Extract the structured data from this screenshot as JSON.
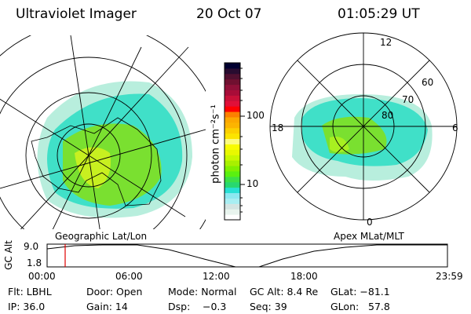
{
  "header": {
    "instrument": "Ultraviolet Imager",
    "date": "20 Oct 07",
    "time": "01:05:29 UT"
  },
  "left_map": {
    "label": "Geographic Lat/Lon"
  },
  "right_map": {
    "label": "Apex MLat/MLT",
    "mlt_labels": [
      "12",
      "18",
      "6",
      "0"
    ],
    "lat_labels": [
      "60",
      "70",
      "80"
    ]
  },
  "colorbar": {
    "unit_label": "photon cm⁻²s⁻¹",
    "ticks": [
      "100",
      "10"
    ],
    "colors": [
      "#ffffff",
      "#e8f4ee",
      "#d4e4e2",
      "#a8eef2",
      "#8ce8f0",
      "#28e0d4",
      "#28d870",
      "#3ce048",
      "#5af010",
      "#80f000",
      "#a8f000",
      "#c8f800",
      "#e8f800",
      "#f8fc00",
      "#fcfc80",
      "#fce400",
      "#fcd000",
      "#fcb400",
      "#fca800",
      "#fc8000",
      "#ff0000",
      "#e01038",
      "#c81038",
      "#a80c38",
      "#901038",
      "#701030",
      "#501030",
      "#280c30",
      "#000030"
    ]
  },
  "altitude_plot": {
    "ylabel": "GC Alt",
    "yticks": [
      "9.0",
      "1.8"
    ],
    "xticks": [
      "00:00",
      "06:00",
      "12:00",
      "18:00",
      "23:59"
    ],
    "current_time_marker": "01:05"
  },
  "info": {
    "flt": "Flt: LBHL",
    "ip": "IP: 36.0",
    "door": "Door: Open",
    "gain": "Gain: 14",
    "mode": "Mode: Normal",
    "dsp_label": "Dsp:",
    "dsp_value": "−0.3",
    "gc_alt": "GC Alt: 8.4 Re",
    "seq": "Seq: 39",
    "glat": "GLat: −81.1",
    "glon_label": "GLon:",
    "glon_value": "57.8"
  }
}
